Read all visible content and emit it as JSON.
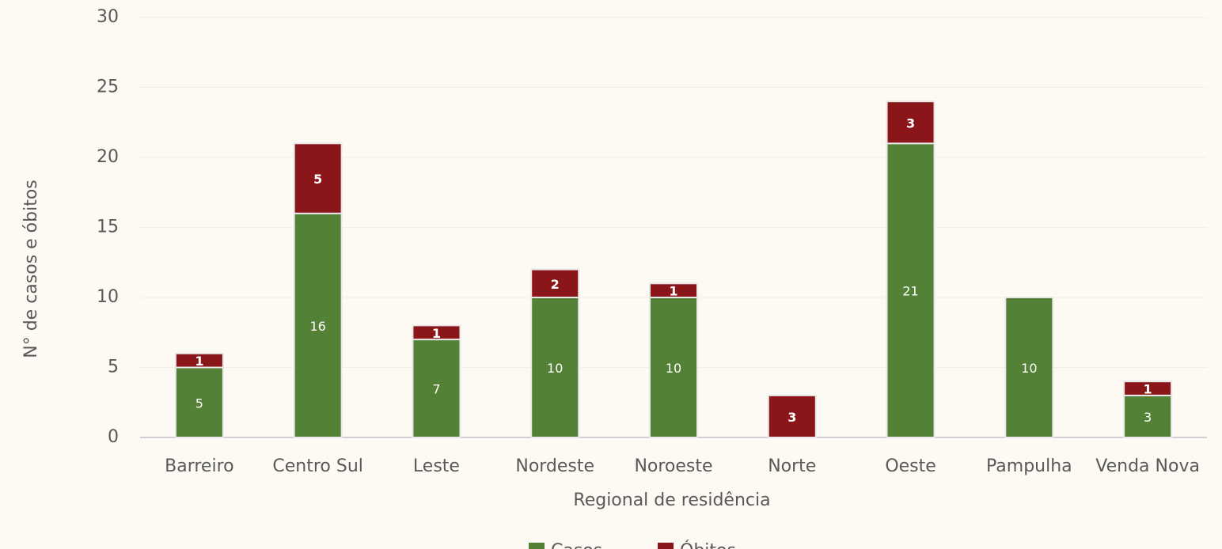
{
  "chart_data": {
    "type": "stacked-bar",
    "x_label": "Regional de residência",
    "y_label": "N° de casos e óbitos",
    "categories": [
      "Barreiro",
      "Centro Sul",
      "Leste",
      "Nordeste",
      "Noroeste",
      "Norte",
      "Oeste",
      "Pampulha",
      "Venda Nova"
    ],
    "series": [
      {
        "name": "Casos",
        "color": "#538135",
        "values": [
          5,
          16,
          7,
          10,
          10,
          null,
          21,
          10,
          3
        ]
      },
      {
        "name": "Óbitos",
        "color": "#8b1619",
        "values": [
          1,
          5,
          1,
          2,
          1,
          3,
          3,
          null,
          1
        ]
      }
    ],
    "ylim": [
      0,
      30
    ],
    "yticks": [
      0,
      5,
      10,
      15,
      20,
      25,
      30
    ],
    "grid": true,
    "legend": "bottom"
  }
}
